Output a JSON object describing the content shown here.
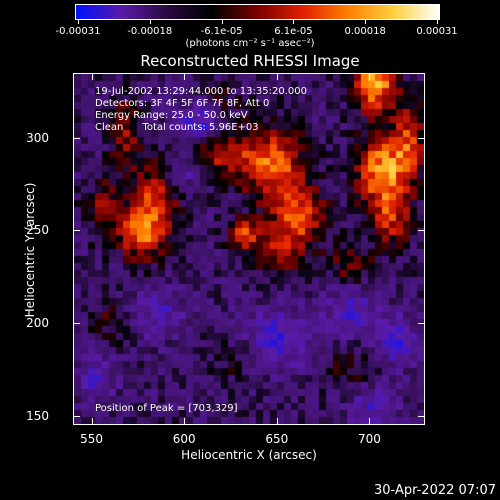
{
  "colorbar": {
    "tick_labels": [
      "-0.00031",
      "-0.00018",
      "-6.1e-05",
      "6.1e-05",
      "0.00018",
      "0.00031"
    ],
    "unit_label": "(photons cm⁻² s⁻¹ asec⁻²)",
    "colors": [
      "#0010ff",
      "#5a1aa8",
      "#2a0a40",
      "#000000",
      "#7a0000",
      "#e02000",
      "#ff8000",
      "#ffd040",
      "#ffffff"
    ]
  },
  "plot": {
    "title": "Reconstructed RHESSI Image",
    "info": {
      "time": "19-Jul-2002 13:29:44.000 to 13:35:20.000",
      "detectors": "Detectors: 3F 4F 5F 6F 7F 8F, Att 0",
      "energy": "Energy Range: 25.0 - 50.0 keV",
      "clean": "Clean      Total counts: 5.96E+03"
    },
    "peak_text": "Position of Peak = [703,329]"
  },
  "chart_data": {
    "type": "heatmap",
    "title": "Reconstructed RHESSI Image",
    "xlabel": "Heliocentric X (arcsec)",
    "ylabel": "Heliocentric Y (arcsec)",
    "xlim": [
      540,
      730
    ],
    "ylim": [
      145,
      335
    ],
    "x_ticks": [
      550,
      600,
      650,
      700
    ],
    "y_ticks": [
      150,
      200,
      250,
      300
    ],
    "colorbar_range": [
      -0.00031,
      0.00031
    ],
    "peak": [
      703,
      329
    ],
    "hotspots": [
      {
        "x": 583,
        "y": 262,
        "amp": 0.00022,
        "sx": 9,
        "sy": 16
      },
      {
        "x": 574,
        "y": 248,
        "amp": 0.00018,
        "sx": 7,
        "sy": 9
      },
      {
        "x": 556,
        "y": 262,
        "amp": 0.00014,
        "sx": 6,
        "sy": 12
      },
      {
        "x": 568,
        "y": 303,
        "amp": 0.00013,
        "sx": 6,
        "sy": 14
      },
      {
        "x": 620,
        "y": 293,
        "amp": 0.00017,
        "sx": 12,
        "sy": 10
      },
      {
        "x": 648,
        "y": 286,
        "amp": 0.00024,
        "sx": 12,
        "sy": 14
      },
      {
        "x": 662,
        "y": 258,
        "amp": 0.00022,
        "sx": 10,
        "sy": 12
      },
      {
        "x": 632,
        "y": 248,
        "amp": 0.0002,
        "sx": 6,
        "sy": 6
      },
      {
        "x": 650,
        "y": 238,
        "amp": 0.00014,
        "sx": 10,
        "sy": 9
      },
      {
        "x": 703,
        "y": 329,
        "amp": 0.00031,
        "sx": 8,
        "sy": 10
      },
      {
        "x": 708,
        "y": 282,
        "amp": 0.0003,
        "sx": 10,
        "sy": 14
      },
      {
        "x": 712,
        "y": 255,
        "amp": 0.00016,
        "sx": 8,
        "sy": 10
      },
      {
        "x": 690,
        "y": 232,
        "amp": 0.00012,
        "sx": 8,
        "sy": 8
      },
      {
        "x": 722,
        "y": 300,
        "amp": 0.00018,
        "sx": 6,
        "sy": 14
      },
      {
        "x": 620,
        "y": 318,
        "amp": 0.0001,
        "sx": 8,
        "sy": 8
      },
      {
        "x": 560,
        "y": 200,
        "amp": 8e-05,
        "sx": 8,
        "sy": 8
      },
      {
        "x": 630,
        "y": 180,
        "amp": 7e-05,
        "sx": 10,
        "sy": 8
      },
      {
        "x": 690,
        "y": 175,
        "amp": 8e-05,
        "sx": 10,
        "sy": 10
      }
    ],
    "coldspots": [
      {
        "x": 612,
        "y": 308,
        "amp": -0.0002,
        "sx": 10,
        "sy": 8
      },
      {
        "x": 600,
        "y": 283,
        "amp": -0.00012,
        "sx": 6,
        "sy": 6
      },
      {
        "x": 650,
        "y": 190,
        "amp": -0.00014,
        "sx": 12,
        "sy": 12
      },
      {
        "x": 690,
        "y": 205,
        "amp": -0.00013,
        "sx": 10,
        "sy": 10
      },
      {
        "x": 586,
        "y": 205,
        "amp": -0.0001,
        "sx": 10,
        "sy": 10
      },
      {
        "x": 702,
        "y": 155,
        "amp": -0.00012,
        "sx": 10,
        "sy": 8
      },
      {
        "x": 552,
        "y": 170,
        "amp": -0.0001,
        "sx": 8,
        "sy": 10
      },
      {
        "x": 715,
        "y": 190,
        "amp": -0.00014,
        "sx": 8,
        "sy": 10
      }
    ]
  },
  "footer": {
    "date": "30-Apr-2022 07:07"
  }
}
